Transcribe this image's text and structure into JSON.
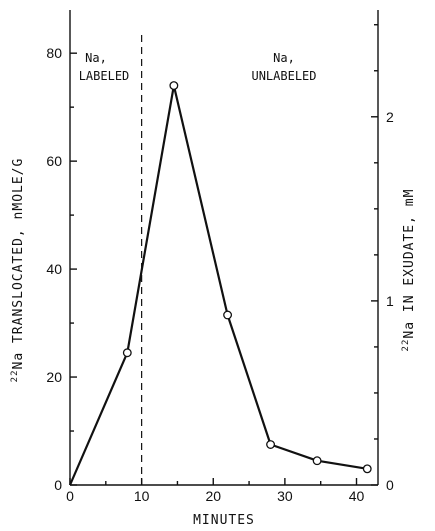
{
  "chart_data": {
    "type": "line",
    "xlabel": "MINUTES",
    "ylabel_sup": "22",
    "ylabel": "Na TRANSLOCATED, nMOLE/G",
    "y2label_sup": "22",
    "y2label": "Na IN EXUDATE, mM",
    "x": [
      0,
      8,
      14.5,
      22,
      28,
      34.5,
      41.5
    ],
    "series": [
      {
        "values": [
          0,
          24.5,
          74,
          31.5,
          7.5,
          4.5,
          3
        ]
      }
    ],
    "xlim": [
      0,
      43
    ],
    "ylim": [
      0,
      88
    ],
    "y2lim": [
      0,
      2.58
    ],
    "xticks": [
      0,
      10,
      20,
      30,
      40
    ],
    "xtick_labels": [
      "0",
      "10",
      "20",
      "30",
      "40"
    ],
    "yticks": [
      0,
      20,
      40,
      60,
      80
    ],
    "ytick_labels": [
      "0",
      "20",
      "40",
      "60",
      "80"
    ],
    "y2ticks": [
      0,
      1,
      2
    ],
    "y2tick_labels": [
      "0",
      "1",
      "2"
    ],
    "divider_x": 10,
    "annotations": {
      "left_line1": "Na,",
      "left_line2": "LABELED",
      "right_line1": "Na,",
      "right_line2": "UNLABELED"
    },
    "grid": false
  }
}
